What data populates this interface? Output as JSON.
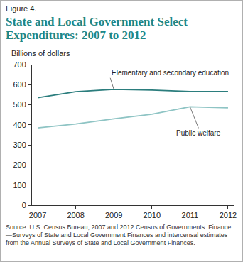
{
  "chart_data": {
    "type": "line",
    "figure_label": "Figure 4.",
    "title": "State and Local Government Select Expenditures: 2007 to 2012",
    "y_label": "Billions of dollars",
    "x": [
      2007,
      2008,
      2009,
      2010,
      2011,
      2012
    ],
    "series": [
      {
        "name": "Elementary and secondary education",
        "color": "#2b7d7d",
        "values": [
          535,
          565,
          577,
          573,
          566,
          566
        ]
      },
      {
        "name": "Public welfare",
        "color": "#8ec4c4",
        "values": [
          385,
          404,
          430,
          453,
          490,
          485
        ]
      }
    ],
    "xlim": [
      2006.85,
      2012.15
    ],
    "xticks": [
      2007,
      2008,
      2009,
      2010,
      2011,
      2012
    ],
    "ylim": [
      0,
      700
    ],
    "yticks": [
      0,
      100,
      200,
      300,
      400,
      500,
      600,
      700
    ],
    "grid": false,
    "source": "Source: U.S. Census Bureau, 2007 and 2012 Census of Governments: Finance—Surveys of State and Local Government Finances and intercensal estimates from the Annual Surveys of State and Local Government Finances."
  }
}
